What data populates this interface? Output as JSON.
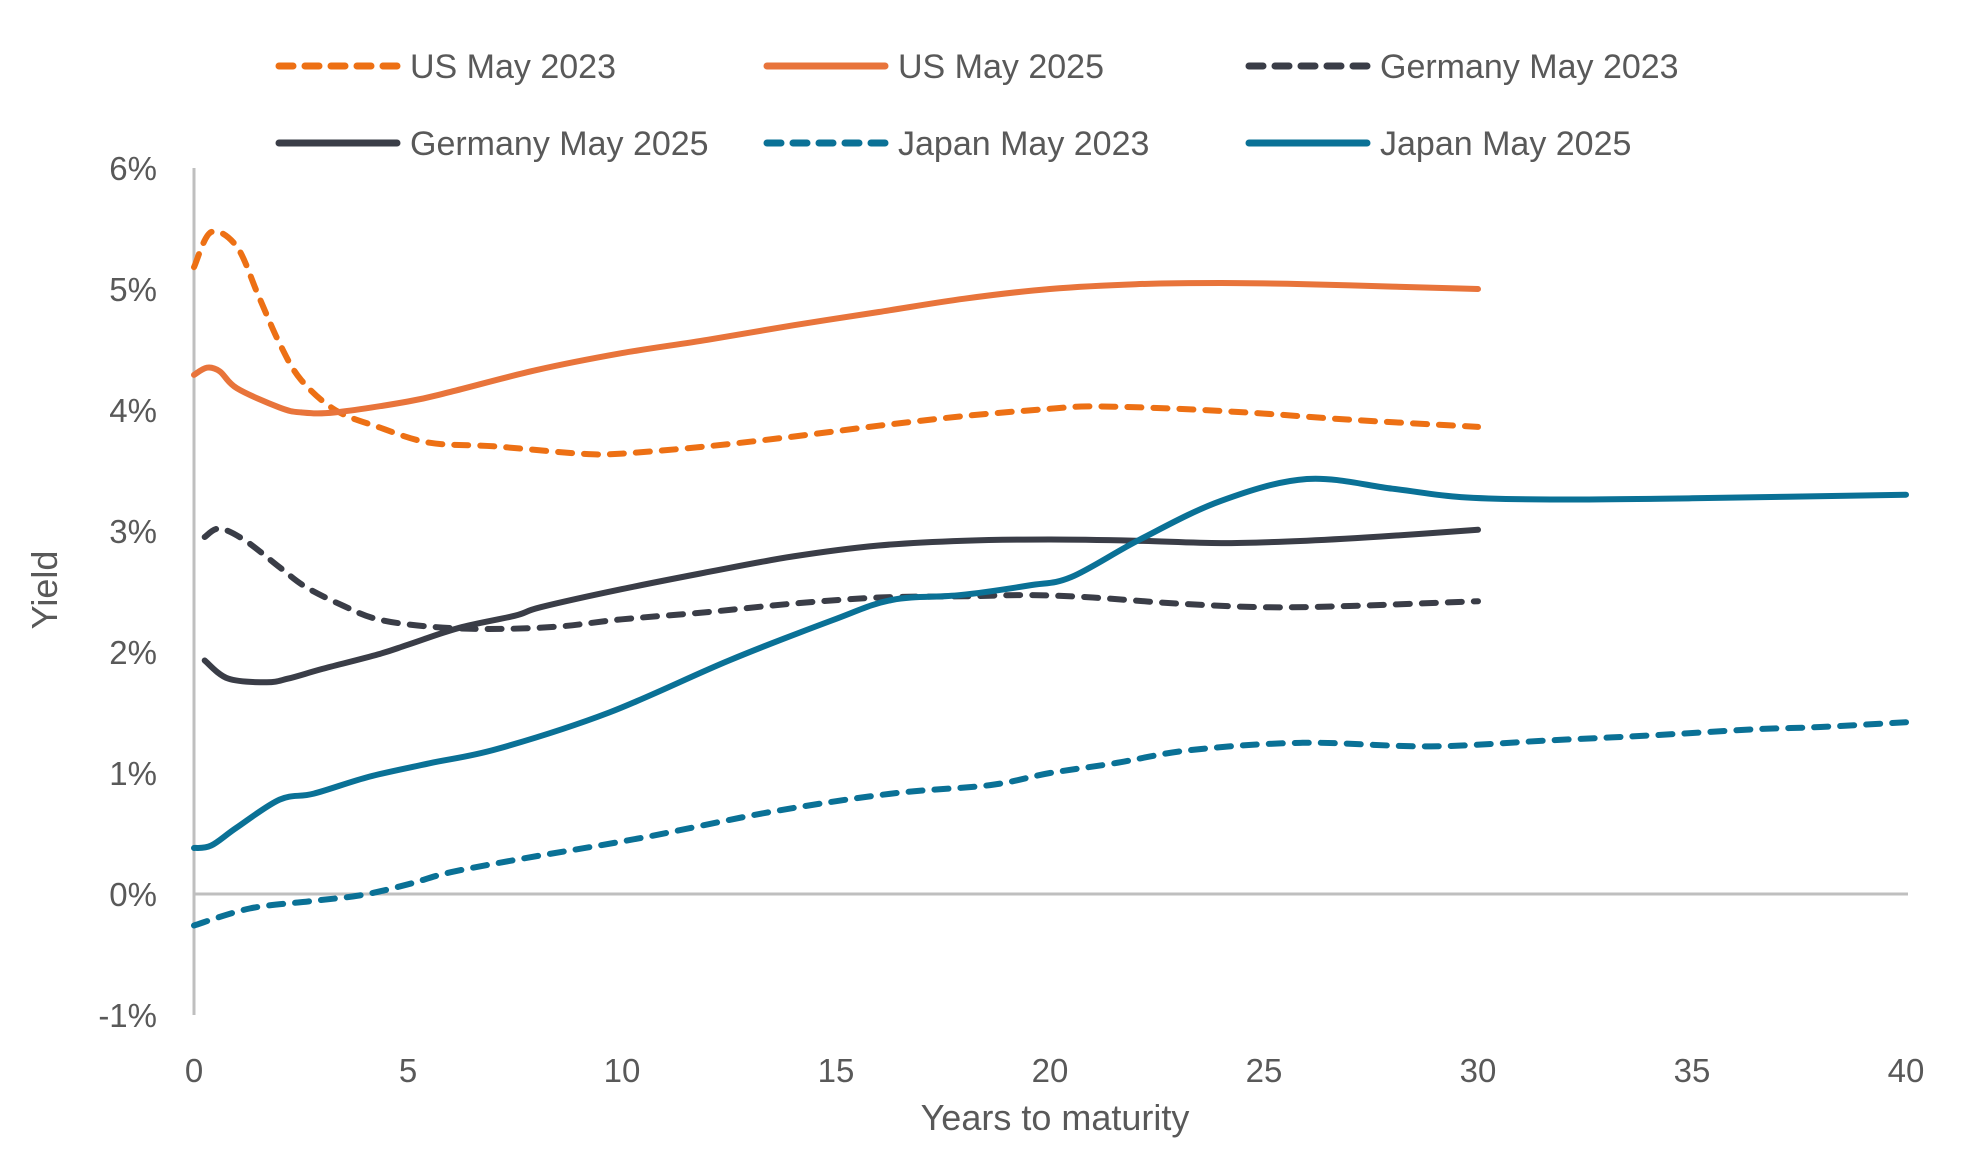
{
  "chart_data": {
    "type": "line",
    "title": "",
    "xlabel": "Years to maturity",
    "ylabel": "Yield",
    "xlim": [
      0,
      40
    ],
    "ylim": [
      -1,
      6
    ],
    "x_ticks": [
      0,
      5,
      10,
      15,
      20,
      25,
      30,
      35,
      40
    ],
    "x_tick_labels": [
      "0",
      "5",
      "10",
      "15",
      "20",
      "25",
      "30",
      "35",
      "40"
    ],
    "y_ticks": [
      -1,
      0,
      1,
      2,
      3,
      4,
      5,
      6
    ],
    "y_tick_labels": [
      "-1%",
      "0%",
      "1%",
      "2%",
      "3%",
      "4%",
      "5%",
      "6%"
    ],
    "grid": false,
    "zero_line": true,
    "legend_position": "top",
    "series": [
      {
        "name": "US May 2023",
        "color": "#ED7014",
        "style": "dashed",
        "x": [
          0,
          0.4,
          1,
          1.5,
          2,
          2.5,
          3.3,
          4.3,
          5.5,
          7,
          9,
          10,
          12,
          14,
          16,
          18,
          20,
          21,
          23,
          25,
          27,
          30
        ],
        "y": [
          5.18,
          5.47,
          5.35,
          4.95,
          4.55,
          4.25,
          4.0,
          3.86,
          3.73,
          3.7,
          3.64,
          3.64,
          3.7,
          3.78,
          3.87,
          3.95,
          4.01,
          4.03,
          4.01,
          3.97,
          3.92,
          3.86
        ]
      },
      {
        "name": "US May 2025",
        "color": "#E8743B",
        "style": "solid",
        "x": [
          0,
          0.3,
          0.6,
          1,
          2,
          2.5,
          3.3,
          5,
          6,
          8,
          10,
          12,
          14,
          16,
          18,
          20,
          22,
          24,
          26,
          28,
          30
        ],
        "y": [
          4.29,
          4.35,
          4.32,
          4.18,
          4.02,
          3.98,
          3.98,
          4.07,
          4.15,
          4.33,
          4.47,
          4.58,
          4.7,
          4.81,
          4.92,
          5.0,
          5.04,
          5.05,
          5.04,
          5.02,
          5.0
        ]
      },
      {
        "name": "Germany May 2023",
        "color": "#3A3D47",
        "style": "dashed",
        "x": [
          0.25,
          0.6,
          1.2,
          2,
          2.6,
          3.5,
          4.3,
          5.5,
          6.9,
          8.5,
          10,
          12,
          14,
          16,
          18,
          19.5,
          21,
          23,
          25,
          27,
          30
        ],
        "y": [
          2.95,
          3.02,
          2.92,
          2.7,
          2.54,
          2.38,
          2.27,
          2.21,
          2.19,
          2.21,
          2.27,
          2.33,
          2.4,
          2.45,
          2.46,
          2.47,
          2.45,
          2.4,
          2.37,
          2.38,
          2.42
        ]
      },
      {
        "name": "Germany May 2025",
        "color": "#3A3D47",
        "style": "solid",
        "x": [
          0.25,
          0.8,
          1.7,
          2.2,
          3,
          4.3,
          5,
          6.2,
          7.5,
          8.1,
          10,
          12,
          14,
          16,
          18,
          20,
          22,
          24,
          26,
          28,
          30
        ],
        "y": [
          1.93,
          1.78,
          1.75,
          1.78,
          1.86,
          1.98,
          2.06,
          2.2,
          2.3,
          2.37,
          2.52,
          2.66,
          2.79,
          2.88,
          2.92,
          2.93,
          2.92,
          2.9,
          2.92,
          2.96,
          3.01
        ]
      },
      {
        "name": "Japan May 2023",
        "color": "#0A7196",
        "style": "dashed",
        "x": [
          0,
          1.3,
          2.7,
          3.9,
          5,
          6,
          7.8,
          10.4,
          13.5,
          16.3,
          18.6,
          20,
          21.5,
          23.3,
          25.9,
          28.9,
          31.7,
          34,
          36.4,
          38,
          40
        ],
        "y": [
          -0.26,
          -0.12,
          -0.06,
          -0.01,
          0.08,
          0.18,
          0.3,
          0.46,
          0.68,
          0.83,
          0.9,
          1.0,
          1.08,
          1.19,
          1.25,
          1.22,
          1.27,
          1.31,
          1.36,
          1.38,
          1.42
        ]
      },
      {
        "name": "Japan May 2025",
        "color": "#0A7196",
        "style": "solid",
        "x": [
          0,
          0.4,
          1,
          2,
          2.8,
          4.1,
          5.5,
          7.1,
          9.7,
          12.5,
          14.9,
          16.3,
          17.9,
          19.5,
          20.5,
          22.1,
          24,
          26,
          28,
          29.6,
          31.7,
          35,
          40
        ],
        "y": [
          0.38,
          0.4,
          0.55,
          0.78,
          0.83,
          0.97,
          1.08,
          1.2,
          1.5,
          1.93,
          2.26,
          2.43,
          2.47,
          2.55,
          2.62,
          2.93,
          3.25,
          3.43,
          3.35,
          3.28,
          3.26,
          3.27,
          3.3
        ]
      }
    ]
  }
}
